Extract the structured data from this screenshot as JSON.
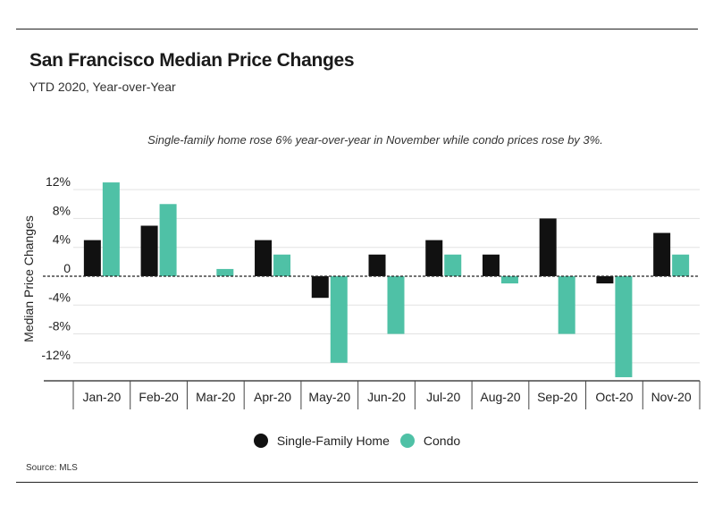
{
  "header": {
    "title": "San Francisco Median Price Changes",
    "subtitle": "YTD 2020, Year-over-Year"
  },
  "annotation": "Single-family home rose 6% year-over-year in November while condo prices rose by 3%.",
  "source": "Source:  MLS",
  "colors": {
    "single_family": "#111111",
    "condo": "#4fc1a6"
  },
  "chart_data": {
    "type": "bar",
    "title": "San Francisco Median Price Changes",
    "subtitle": "YTD 2020, Year-over-Year",
    "xlabel": "",
    "ylabel": "Median Price Changes",
    "categories": [
      "Jan-20",
      "Feb-20",
      "Mar-20",
      "Apr-20",
      "May-20",
      "Jun-20",
      "Jul-20",
      "Aug-20",
      "Sep-20",
      "Oct-20",
      "Nov-20"
    ],
    "series": [
      {
        "name": "Single-Family Home",
        "values": [
          5,
          7,
          0,
          5,
          -3,
          3,
          5,
          3,
          8,
          -1,
          6
        ]
      },
      {
        "name": "Condo",
        "values": [
          13,
          10,
          1,
          3,
          -12,
          -8,
          3,
          -1,
          -8,
          -14,
          3
        ]
      }
    ],
    "yticks": [
      12,
      8,
      4,
      0,
      -4,
      -8,
      -12
    ],
    "ytick_labels": [
      "12%",
      "8%",
      "4%",
      "0",
      "-4%",
      "-8%",
      "-12%"
    ],
    "ylim": [
      -14.5,
      14
    ],
    "grid": true,
    "legend_position": "bottom"
  }
}
